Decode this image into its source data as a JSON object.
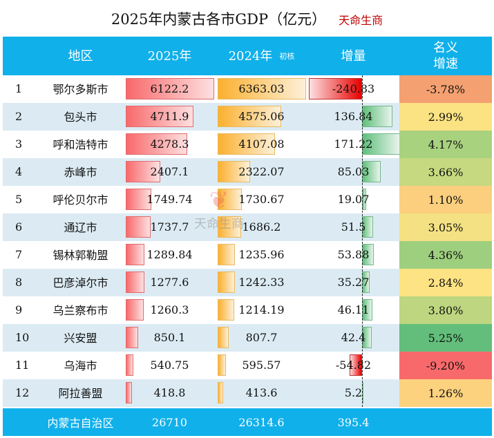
{
  "title": "2025年内蒙古各市GDP（亿元）",
  "brand": "天命生商",
  "watermark": "天命生商",
  "headers": {
    "region": "地区",
    "y2025": "2025年",
    "y2024": "2024年",
    "y2024_note": "初核",
    "delta": "增量",
    "rate_line1": "名义",
    "rate_line2": "增速"
  },
  "rows": [
    {
      "rank": "1",
      "name": "鄂尔多斯市",
      "y2025": "6122.2",
      "y2024": "6363.03",
      "delta": "-240.83",
      "rate": "-3.78%",
      "rate_color": "#f4a070"
    },
    {
      "rank": "2",
      "name": "包头市",
      "y2025": "4711.9",
      "y2024": "4575.06",
      "delta": "136.84",
      "rate": "2.99%",
      "rate_color": "#fbe283"
    },
    {
      "rank": "3",
      "name": "呼和浩特市",
      "y2025": "4278.3",
      "y2024": "4107.08",
      "delta": "171.22",
      "rate": "4.17%",
      "rate_color": "#a9d27f"
    },
    {
      "rank": "4",
      "name": "赤峰市",
      "y2025": "2407.1",
      "y2024": "2322.07",
      "delta": "85.03",
      "rate": "3.66%",
      "rate_color": "#c6d980"
    },
    {
      "rank": "5",
      "name": "呼伦贝尔市",
      "y2025": "1749.74",
      "y2024": "1730.67",
      "delta": "19.07",
      "rate": "1.10%",
      "rate_color": "#fbcf7e"
    },
    {
      "rank": "6",
      "name": "通辽市",
      "y2025": "1737.7",
      "y2024": "1686.2",
      "delta": "51.5",
      "rate": "3.05%",
      "rate_color": "#f3e183"
    },
    {
      "rank": "7",
      "name": "锡林郭勒盟",
      "y2025": "1289.84",
      "y2024": "1235.96",
      "delta": "53.88",
      "rate": "4.36%",
      "rate_color": "#9ecf7e"
    },
    {
      "rank": "8",
      "name": "巴彦淖尔市",
      "y2025": "1277.6",
      "y2024": "1242.33",
      "delta": "35.27",
      "rate": "2.84%",
      "rate_color": "#fde383"
    },
    {
      "rank": "9",
      "name": "乌兰察布市",
      "y2025": "1260.3",
      "y2024": "1214.19",
      "delta": "46.11",
      "rate": "3.80%",
      "rate_color": "#bdd67f"
    },
    {
      "rank": "10",
      "name": "兴安盟",
      "y2025": "850.1",
      "y2024": "807.7",
      "delta": "42.4",
      "rate": "5.25%",
      "rate_color": "#63be7b"
    },
    {
      "rank": "11",
      "name": "乌海市",
      "y2025": "540.75",
      "y2024": "595.57",
      "delta": "-54.82",
      "rate": "-9.20%",
      "rate_color": "#f8696b"
    },
    {
      "rank": "12",
      "name": "阿拉善盟",
      "y2025": "418.8",
      "y2024": "413.6",
      "delta": "5.2",
      "rate": "1.26%",
      "rate_color": "#fcd27f"
    }
  ],
  "total": {
    "name": "内蒙古自治区",
    "y2025": "26710",
    "y2024": "26314.6",
    "delta": "395.4"
  }
}
